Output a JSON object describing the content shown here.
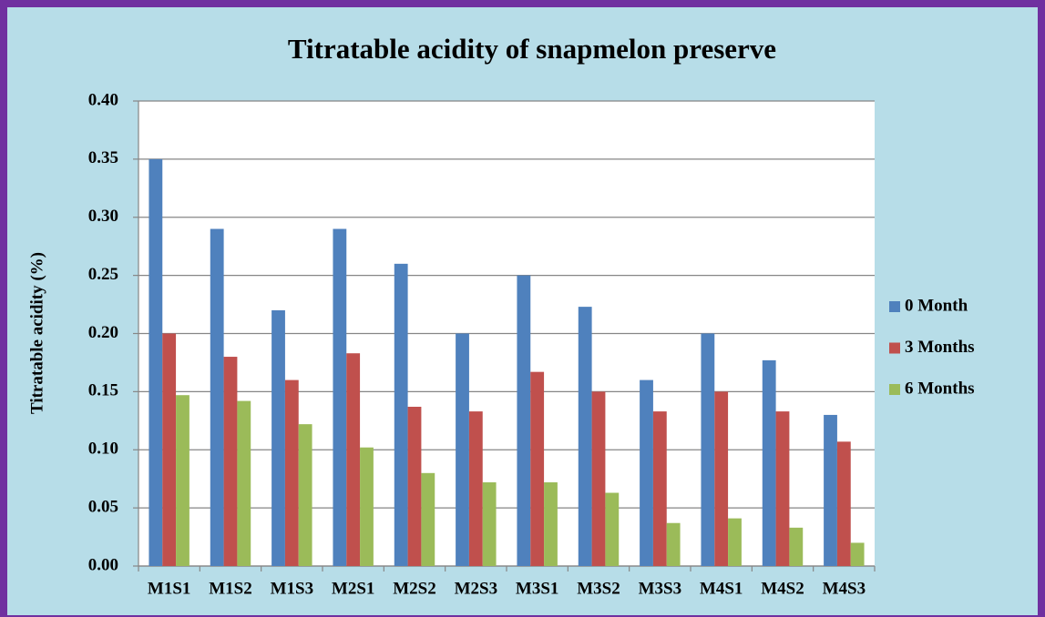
{
  "chart_data": {
    "type": "bar",
    "title": "Titratable acidity of snapmelon preserve",
    "y_label": "Titratable acidity (%)",
    "categories": [
      "M1S1",
      "M1S2",
      "M1S3",
      "M2S1",
      "M2S2",
      "M2S3",
      "M3S1",
      "M3S2",
      "M3S3",
      "M4S1",
      "M4S2",
      "M4S3"
    ],
    "series": [
      {
        "name": "0 Month",
        "color": "#4f81bd",
        "values": [
          0.35,
          0.29,
          0.22,
          0.29,
          0.26,
          0.2,
          0.25,
          0.223,
          0.16,
          0.2,
          0.177,
          0.13
        ]
      },
      {
        "name": "3 Months",
        "color": "#c0504d",
        "values": [
          0.2,
          0.18,
          0.16,
          0.183,
          0.137,
          0.133,
          0.167,
          0.15,
          0.133,
          0.15,
          0.133,
          0.107
        ]
      },
      {
        "name": "6 Months",
        "color": "#9bbb59",
        "values": [
          0.147,
          0.142,
          0.122,
          0.102,
          0.08,
          0.072,
          0.072,
          0.063,
          0.037,
          0.041,
          0.033,
          0.02
        ]
      }
    ],
    "ylim": [
      0,
      0.4
    ],
    "yticks": [
      {
        "value": 0,
        "label": "0.00"
      },
      {
        "value": 0.05,
        "label": "0.05"
      },
      {
        "value": 0.1,
        "label": "0.10"
      },
      {
        "value": 0.15,
        "label": "0.15"
      },
      {
        "value": 0.2,
        "label": "0.20"
      },
      {
        "value": 0.25,
        "label": "0.25"
      },
      {
        "value": 0.3,
        "label": "0.30"
      },
      {
        "value": 0.35,
        "label": "0.35"
      },
      {
        "value": 0.4,
        "label": "0.40"
      }
    ],
    "grid": true,
    "legend": "right"
  }
}
